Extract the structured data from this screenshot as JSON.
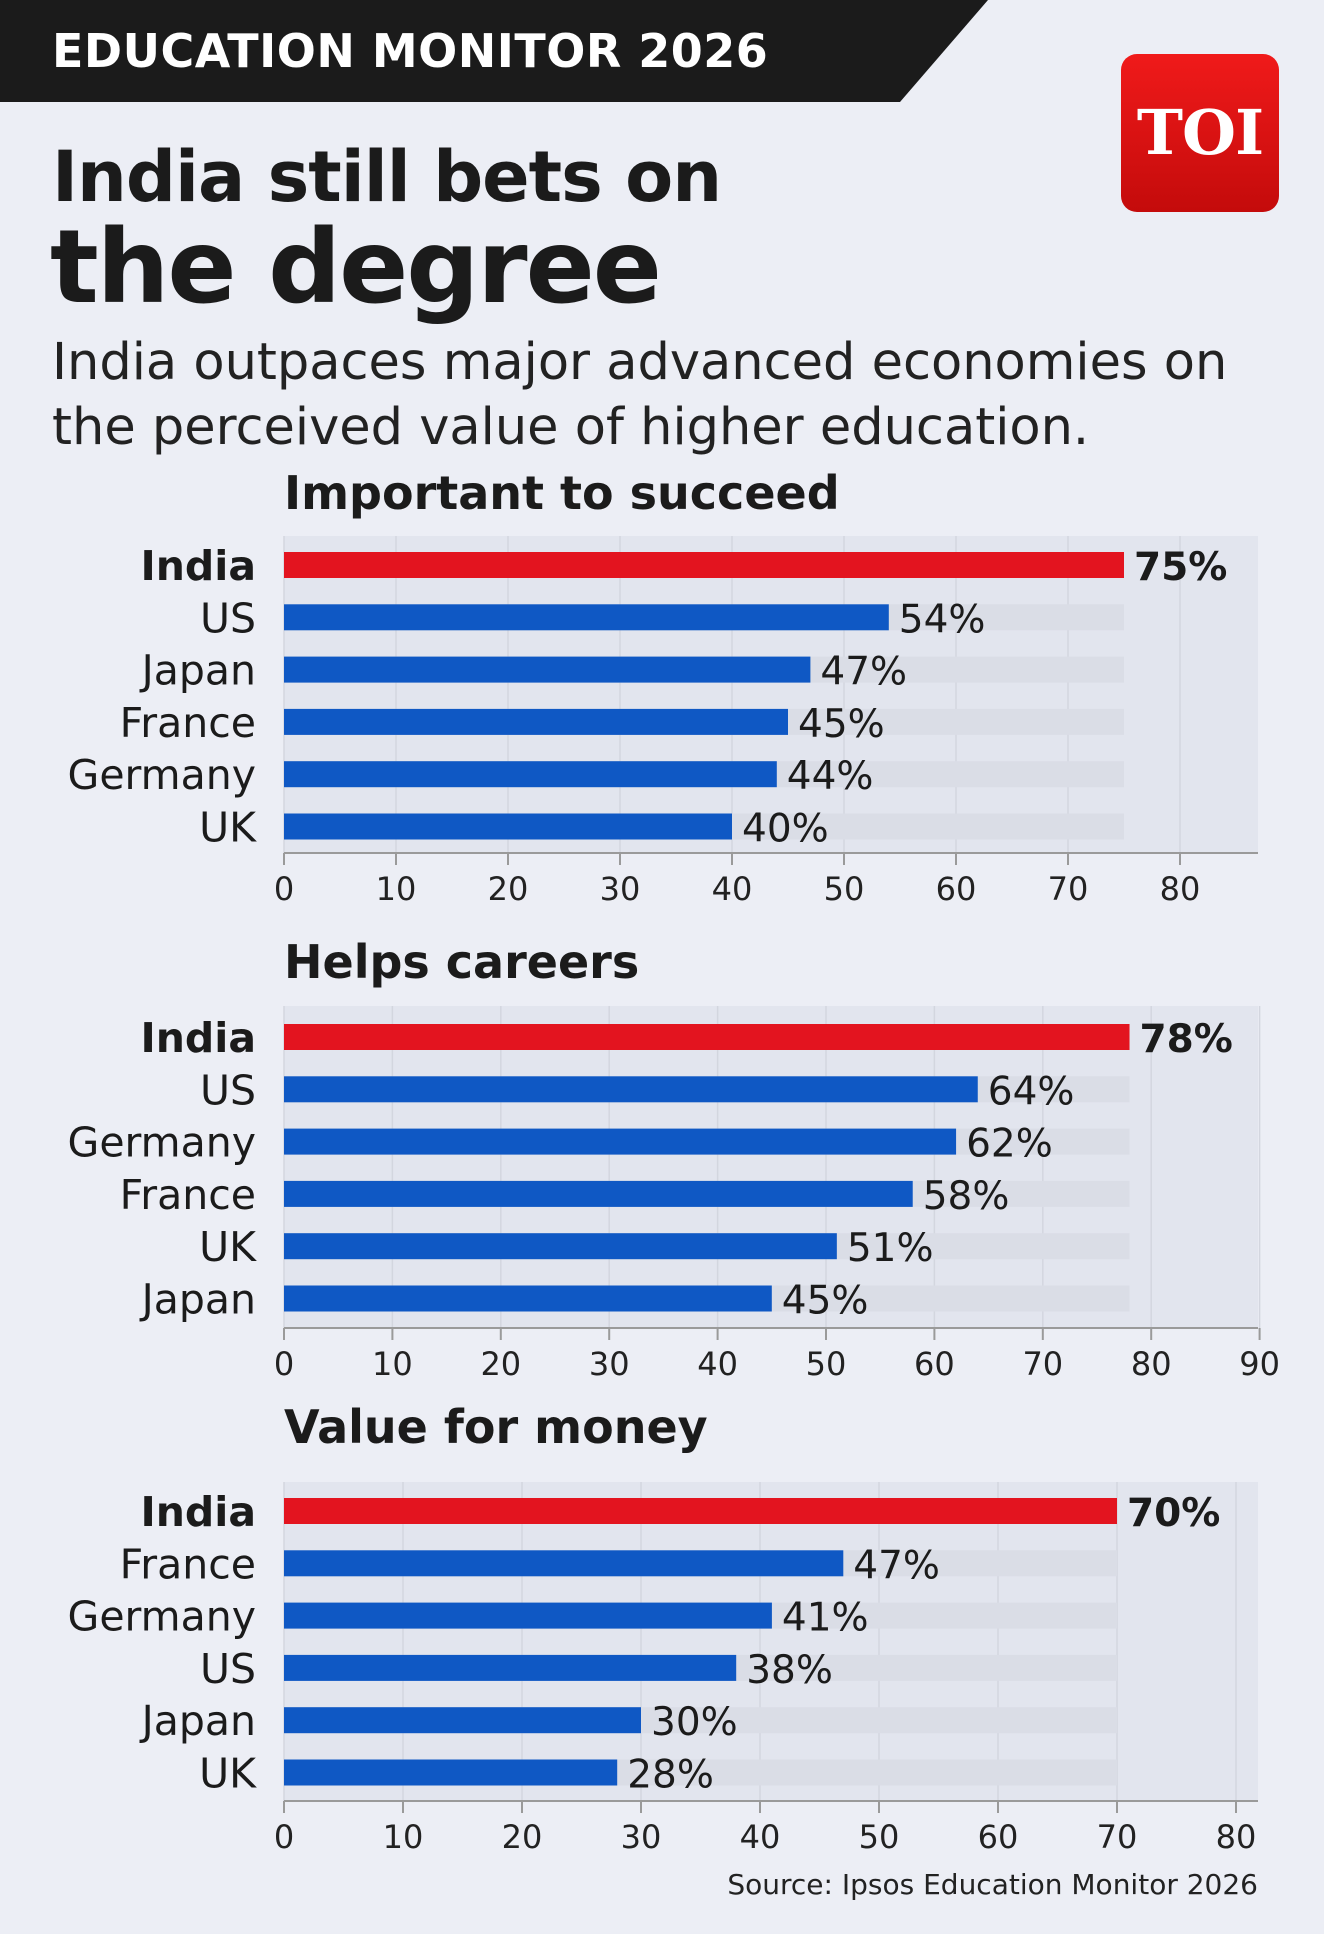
{
  "banner": {
    "label": "EDUCATION MONITOR 2026"
  },
  "logo": {
    "text": "TOI",
    "color": "#E41B1B"
  },
  "headline": {
    "line1": "India still bets on",
    "line2": "the degree"
  },
  "subtitle": "India outpaces major advanced economies on the perceived value of higher education.",
  "source": "Source: Ipsos Education Monitor 2026",
  "colors": {
    "highlight": "#E3141F",
    "bar": "#0F58C4",
    "track": "#DADDE6",
    "panel": "#E2E5EE",
    "background": "#ECEEF5"
  },
  "chart_data": [
    {
      "type": "bar",
      "orientation": "horizontal",
      "title": "Important to succeed",
      "categories": [
        "India",
        "US",
        "Japan",
        "France",
        "Germany",
        "UK"
      ],
      "values": [
        75,
        54,
        47,
        45,
        44,
        40
      ],
      "value_labels": [
        "75%",
        "54%",
        "47%",
        "45%",
        "44%",
        "40%"
      ],
      "highlight": "India",
      "xlim": [
        0,
        80
      ],
      "ticks": [
        0,
        10,
        20,
        30,
        40,
        50,
        60,
        70,
        80
      ],
      "grid": true
    },
    {
      "type": "bar",
      "orientation": "horizontal",
      "title": "Helps careers",
      "categories": [
        "India",
        "US",
        "Germany",
        "France",
        "UK",
        "Japan"
      ],
      "values": [
        78,
        64,
        62,
        58,
        51,
        45
      ],
      "value_labels": [
        "78%",
        "64%",
        "62%",
        "58%",
        "51%",
        "45%"
      ],
      "highlight": "India",
      "xlim": [
        0,
        90
      ],
      "ticks": [
        0,
        10,
        20,
        30,
        40,
        50,
        60,
        70,
        80,
        90
      ],
      "grid": true
    },
    {
      "type": "bar",
      "orientation": "horizontal",
      "title": "Value for money",
      "categories": [
        "India",
        "France",
        "Germany",
        "US",
        "Japan",
        "UK"
      ],
      "values": [
        70,
        47,
        41,
        38,
        30,
        28
      ],
      "value_labels": [
        "70%",
        "47%",
        "41%",
        "38%",
        "30%",
        "28%"
      ],
      "highlight": "India",
      "xlim": [
        0,
        80
      ],
      "ticks": [
        0,
        10,
        20,
        30,
        40,
        50,
        60,
        70,
        80
      ],
      "grid": true
    }
  ]
}
